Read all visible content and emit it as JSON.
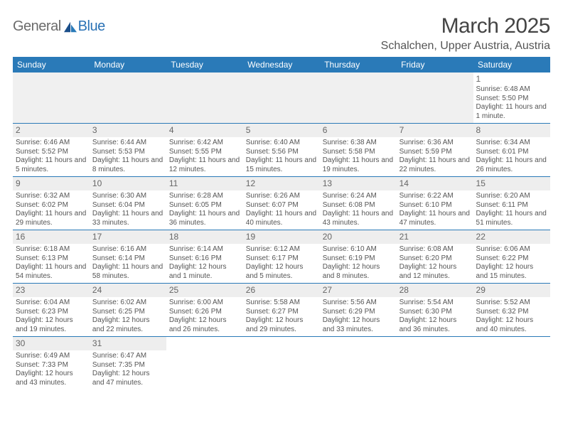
{
  "logo": {
    "part1": "General",
    "part2": "Blue"
  },
  "title": "March 2025",
  "subtitle": "Schalchen, Upper Austria, Austria",
  "dayHeaders": [
    "Sunday",
    "Monday",
    "Tuesday",
    "Wednesday",
    "Thursday",
    "Friday",
    "Saturday"
  ],
  "colors": {
    "headerBg": "#2a7ab8",
    "headerText": "#ffffff",
    "rowBorder": "#2a7ab8",
    "daynumBg": "#eeeeee",
    "logoGray": "#6b6b6b",
    "logoBlue": "#2a72b5"
  },
  "weeks": [
    [
      null,
      null,
      null,
      null,
      null,
      null,
      {
        "num": "1",
        "sunrise": "Sunrise: 6:48 AM",
        "sunset": "Sunset: 5:50 PM",
        "daylight": "Daylight: 11 hours and 1 minute."
      }
    ],
    [
      {
        "num": "2",
        "sunrise": "Sunrise: 6:46 AM",
        "sunset": "Sunset: 5:52 PM",
        "daylight": "Daylight: 11 hours and 5 minutes."
      },
      {
        "num": "3",
        "sunrise": "Sunrise: 6:44 AM",
        "sunset": "Sunset: 5:53 PM",
        "daylight": "Daylight: 11 hours and 8 minutes."
      },
      {
        "num": "4",
        "sunrise": "Sunrise: 6:42 AM",
        "sunset": "Sunset: 5:55 PM",
        "daylight": "Daylight: 11 hours and 12 minutes."
      },
      {
        "num": "5",
        "sunrise": "Sunrise: 6:40 AM",
        "sunset": "Sunset: 5:56 PM",
        "daylight": "Daylight: 11 hours and 15 minutes."
      },
      {
        "num": "6",
        "sunrise": "Sunrise: 6:38 AM",
        "sunset": "Sunset: 5:58 PM",
        "daylight": "Daylight: 11 hours and 19 minutes."
      },
      {
        "num": "7",
        "sunrise": "Sunrise: 6:36 AM",
        "sunset": "Sunset: 5:59 PM",
        "daylight": "Daylight: 11 hours and 22 minutes."
      },
      {
        "num": "8",
        "sunrise": "Sunrise: 6:34 AM",
        "sunset": "Sunset: 6:01 PM",
        "daylight": "Daylight: 11 hours and 26 minutes."
      }
    ],
    [
      {
        "num": "9",
        "sunrise": "Sunrise: 6:32 AM",
        "sunset": "Sunset: 6:02 PM",
        "daylight": "Daylight: 11 hours and 29 minutes."
      },
      {
        "num": "10",
        "sunrise": "Sunrise: 6:30 AM",
        "sunset": "Sunset: 6:04 PM",
        "daylight": "Daylight: 11 hours and 33 minutes."
      },
      {
        "num": "11",
        "sunrise": "Sunrise: 6:28 AM",
        "sunset": "Sunset: 6:05 PM",
        "daylight": "Daylight: 11 hours and 36 minutes."
      },
      {
        "num": "12",
        "sunrise": "Sunrise: 6:26 AM",
        "sunset": "Sunset: 6:07 PM",
        "daylight": "Daylight: 11 hours and 40 minutes."
      },
      {
        "num": "13",
        "sunrise": "Sunrise: 6:24 AM",
        "sunset": "Sunset: 6:08 PM",
        "daylight": "Daylight: 11 hours and 43 minutes."
      },
      {
        "num": "14",
        "sunrise": "Sunrise: 6:22 AM",
        "sunset": "Sunset: 6:10 PM",
        "daylight": "Daylight: 11 hours and 47 minutes."
      },
      {
        "num": "15",
        "sunrise": "Sunrise: 6:20 AM",
        "sunset": "Sunset: 6:11 PM",
        "daylight": "Daylight: 11 hours and 51 minutes."
      }
    ],
    [
      {
        "num": "16",
        "sunrise": "Sunrise: 6:18 AM",
        "sunset": "Sunset: 6:13 PM",
        "daylight": "Daylight: 11 hours and 54 minutes."
      },
      {
        "num": "17",
        "sunrise": "Sunrise: 6:16 AM",
        "sunset": "Sunset: 6:14 PM",
        "daylight": "Daylight: 11 hours and 58 minutes."
      },
      {
        "num": "18",
        "sunrise": "Sunrise: 6:14 AM",
        "sunset": "Sunset: 6:16 PM",
        "daylight": "Daylight: 12 hours and 1 minute."
      },
      {
        "num": "19",
        "sunrise": "Sunrise: 6:12 AM",
        "sunset": "Sunset: 6:17 PM",
        "daylight": "Daylight: 12 hours and 5 minutes."
      },
      {
        "num": "20",
        "sunrise": "Sunrise: 6:10 AM",
        "sunset": "Sunset: 6:19 PM",
        "daylight": "Daylight: 12 hours and 8 minutes."
      },
      {
        "num": "21",
        "sunrise": "Sunrise: 6:08 AM",
        "sunset": "Sunset: 6:20 PM",
        "daylight": "Daylight: 12 hours and 12 minutes."
      },
      {
        "num": "22",
        "sunrise": "Sunrise: 6:06 AM",
        "sunset": "Sunset: 6:22 PM",
        "daylight": "Daylight: 12 hours and 15 minutes."
      }
    ],
    [
      {
        "num": "23",
        "sunrise": "Sunrise: 6:04 AM",
        "sunset": "Sunset: 6:23 PM",
        "daylight": "Daylight: 12 hours and 19 minutes."
      },
      {
        "num": "24",
        "sunrise": "Sunrise: 6:02 AM",
        "sunset": "Sunset: 6:25 PM",
        "daylight": "Daylight: 12 hours and 22 minutes."
      },
      {
        "num": "25",
        "sunrise": "Sunrise: 6:00 AM",
        "sunset": "Sunset: 6:26 PM",
        "daylight": "Daylight: 12 hours and 26 minutes."
      },
      {
        "num": "26",
        "sunrise": "Sunrise: 5:58 AM",
        "sunset": "Sunset: 6:27 PM",
        "daylight": "Daylight: 12 hours and 29 minutes."
      },
      {
        "num": "27",
        "sunrise": "Sunrise: 5:56 AM",
        "sunset": "Sunset: 6:29 PM",
        "daylight": "Daylight: 12 hours and 33 minutes."
      },
      {
        "num": "28",
        "sunrise": "Sunrise: 5:54 AM",
        "sunset": "Sunset: 6:30 PM",
        "daylight": "Daylight: 12 hours and 36 minutes."
      },
      {
        "num": "29",
        "sunrise": "Sunrise: 5:52 AM",
        "sunset": "Sunset: 6:32 PM",
        "daylight": "Daylight: 12 hours and 40 minutes."
      }
    ],
    [
      {
        "num": "30",
        "sunrise": "Sunrise: 6:49 AM",
        "sunset": "Sunset: 7:33 PM",
        "daylight": "Daylight: 12 hours and 43 minutes."
      },
      {
        "num": "31",
        "sunrise": "Sunrise: 6:47 AM",
        "sunset": "Sunset: 7:35 PM",
        "daylight": "Daylight: 12 hours and 47 minutes."
      },
      null,
      null,
      null,
      null,
      null
    ]
  ]
}
